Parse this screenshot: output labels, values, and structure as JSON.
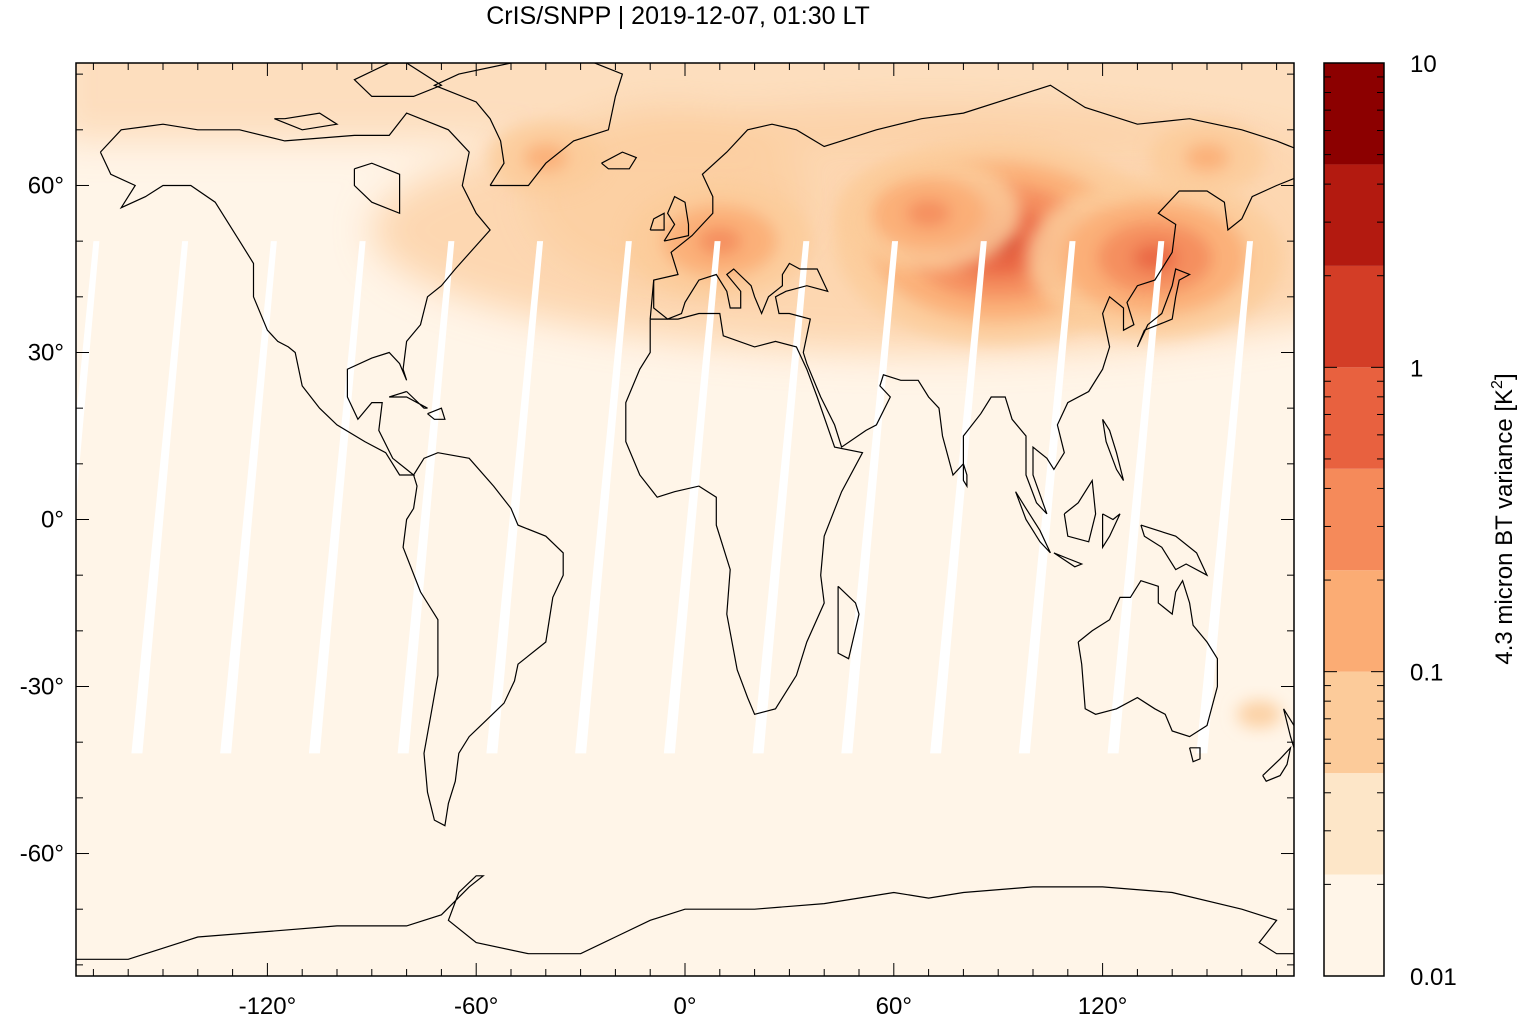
{
  "chart_data": {
    "type": "heatmap",
    "title": "CrIS/SNPP | 2019-12-07, 01:30 LT",
    "projection": "equirectangular",
    "xlim": [
      -175,
      175
    ],
    "ylim": [
      -82,
      82
    ],
    "x_ticks": [
      -120,
      -60,
      0,
      60,
      120
    ],
    "x_tick_labels": [
      "-120°",
      "-60°",
      "0°",
      "60°",
      "120°"
    ],
    "y_ticks": [
      60,
      30,
      0,
      -30,
      -60
    ],
    "y_tick_labels": [
      "60°",
      "30°",
      "0°",
      "-30°",
      "-60°"
    ],
    "colorbar": {
      "label_main": "4.3 micron BT variance [K",
      "label_sup": "2",
      "label_end": "]",
      "scale": "log",
      "range": [
        0.01,
        10
      ],
      "tick_values": [
        10,
        1,
        0.1,
        0.01
      ],
      "tick_labels": [
        "10",
        "1",
        "0.1",
        "0.01"
      ],
      "level_colors": [
        "#fff5e8",
        "#fde6c8",
        "#fccb9a",
        "#fbac74",
        "#f58a5a",
        "#e8613f",
        "#d33d26",
        "#b31a10",
        "#8c0000"
      ]
    },
    "grid": false,
    "features": {
      "coastlines_color": "#000000",
      "swath_gaps": "white diagonal stripes between orbit swaths in the tropics",
      "hotspots": [
        {
          "lon": 90,
          "lat": 50,
          "level": 6
        },
        {
          "lon": 135,
          "lat": 47,
          "level": 5
        },
        {
          "lon": 10,
          "lat": 50,
          "level": 4
        },
        {
          "lon": 70,
          "lat": 55,
          "level": 4
        },
        {
          "lon": 150,
          "lat": 65,
          "level": 3
        },
        {
          "lon": -40,
          "lat": 65,
          "level": 3
        },
        {
          "lon": 165,
          "lat": -35,
          "level": 2
        }
      ]
    }
  }
}
